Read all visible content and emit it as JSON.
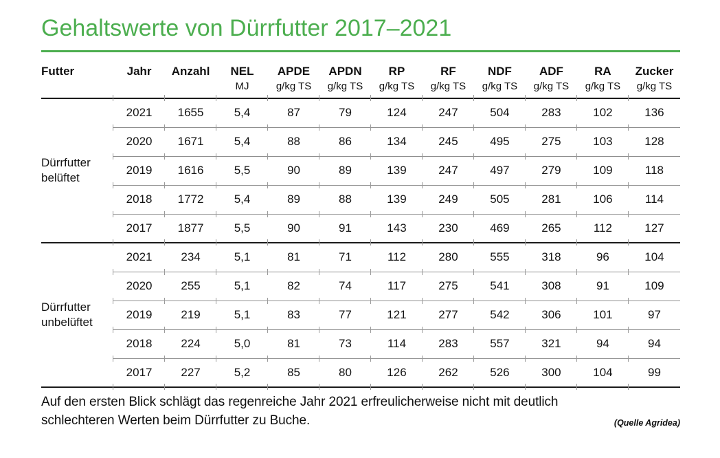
{
  "title": "Gehaltswerte von Dürrfutter 2017–2021",
  "accent_color": "#4cae4f",
  "chart_data": {
    "type": "table",
    "title": "Gehaltswerte von Dürrfutter 2017–2021",
    "columns": [
      {
        "label": "Futter",
        "unit": ""
      },
      {
        "label": "Jahr",
        "unit": ""
      },
      {
        "label": "Anzahl",
        "unit": ""
      },
      {
        "label": "NEL",
        "unit": "MJ"
      },
      {
        "label": "APDE",
        "unit": "g/kg TS"
      },
      {
        "label": "APDN",
        "unit": "g/kg TS"
      },
      {
        "label": "RP",
        "unit": "g/kg TS"
      },
      {
        "label": "RF",
        "unit": "g/kg TS"
      },
      {
        "label": "NDF",
        "unit": "g/kg TS"
      },
      {
        "label": "ADF",
        "unit": "g/kg TS"
      },
      {
        "label": "RA",
        "unit": "g/kg TS"
      },
      {
        "label": "Zucker",
        "unit": "g/kg TS"
      }
    ],
    "groups": [
      {
        "label": "Dürrfutter belüftet",
        "rows": [
          [
            "2021",
            "1655",
            "5,4",
            "87",
            "79",
            "124",
            "247",
            "504",
            "283",
            "102",
            "136"
          ],
          [
            "2020",
            "1671",
            "5,4",
            "88",
            "86",
            "134",
            "245",
            "495",
            "275",
            "103",
            "128"
          ],
          [
            "2019",
            "1616",
            "5,5",
            "90",
            "89",
            "139",
            "247",
            "497",
            "279",
            "109",
            "118"
          ],
          [
            "2018",
            "1772",
            "5,4",
            "89",
            "88",
            "139",
            "249",
            "505",
            "281",
            "106",
            "114"
          ],
          [
            "2017",
            "1877",
            "5,5",
            "90",
            "91",
            "143",
            "230",
            "469",
            "265",
            "112",
            "127"
          ]
        ]
      },
      {
        "label": "Dürrfutter unbelüftet",
        "rows": [
          [
            "2021",
            "234",
            "5,1",
            "81",
            "71",
            "112",
            "280",
            "555",
            "318",
            "96",
            "104"
          ],
          [
            "2020",
            "255",
            "5,1",
            "82",
            "74",
            "117",
            "275",
            "541",
            "308",
            "91",
            "109"
          ],
          [
            "2019",
            "219",
            "5,1",
            "83",
            "77",
            "121",
            "277",
            "542",
            "306",
            "101",
            "97"
          ],
          [
            "2018",
            "224",
            "5,0",
            "81",
            "73",
            "114",
            "283",
            "557",
            "321",
            "94",
            "94"
          ],
          [
            "2017",
            "227",
            "5,2",
            "85",
            "80",
            "126",
            "262",
            "526",
            "300",
            "104",
            "99"
          ]
        ]
      }
    ]
  },
  "footer": {
    "note": "Auf den ersten Blick schlägt das regenreiche Jahr 2021 erfreulicherweise nicht mit deutlich schlechteren Werten beim Dürrfutter zu Buche.",
    "source": "(Quelle Agridea)"
  }
}
